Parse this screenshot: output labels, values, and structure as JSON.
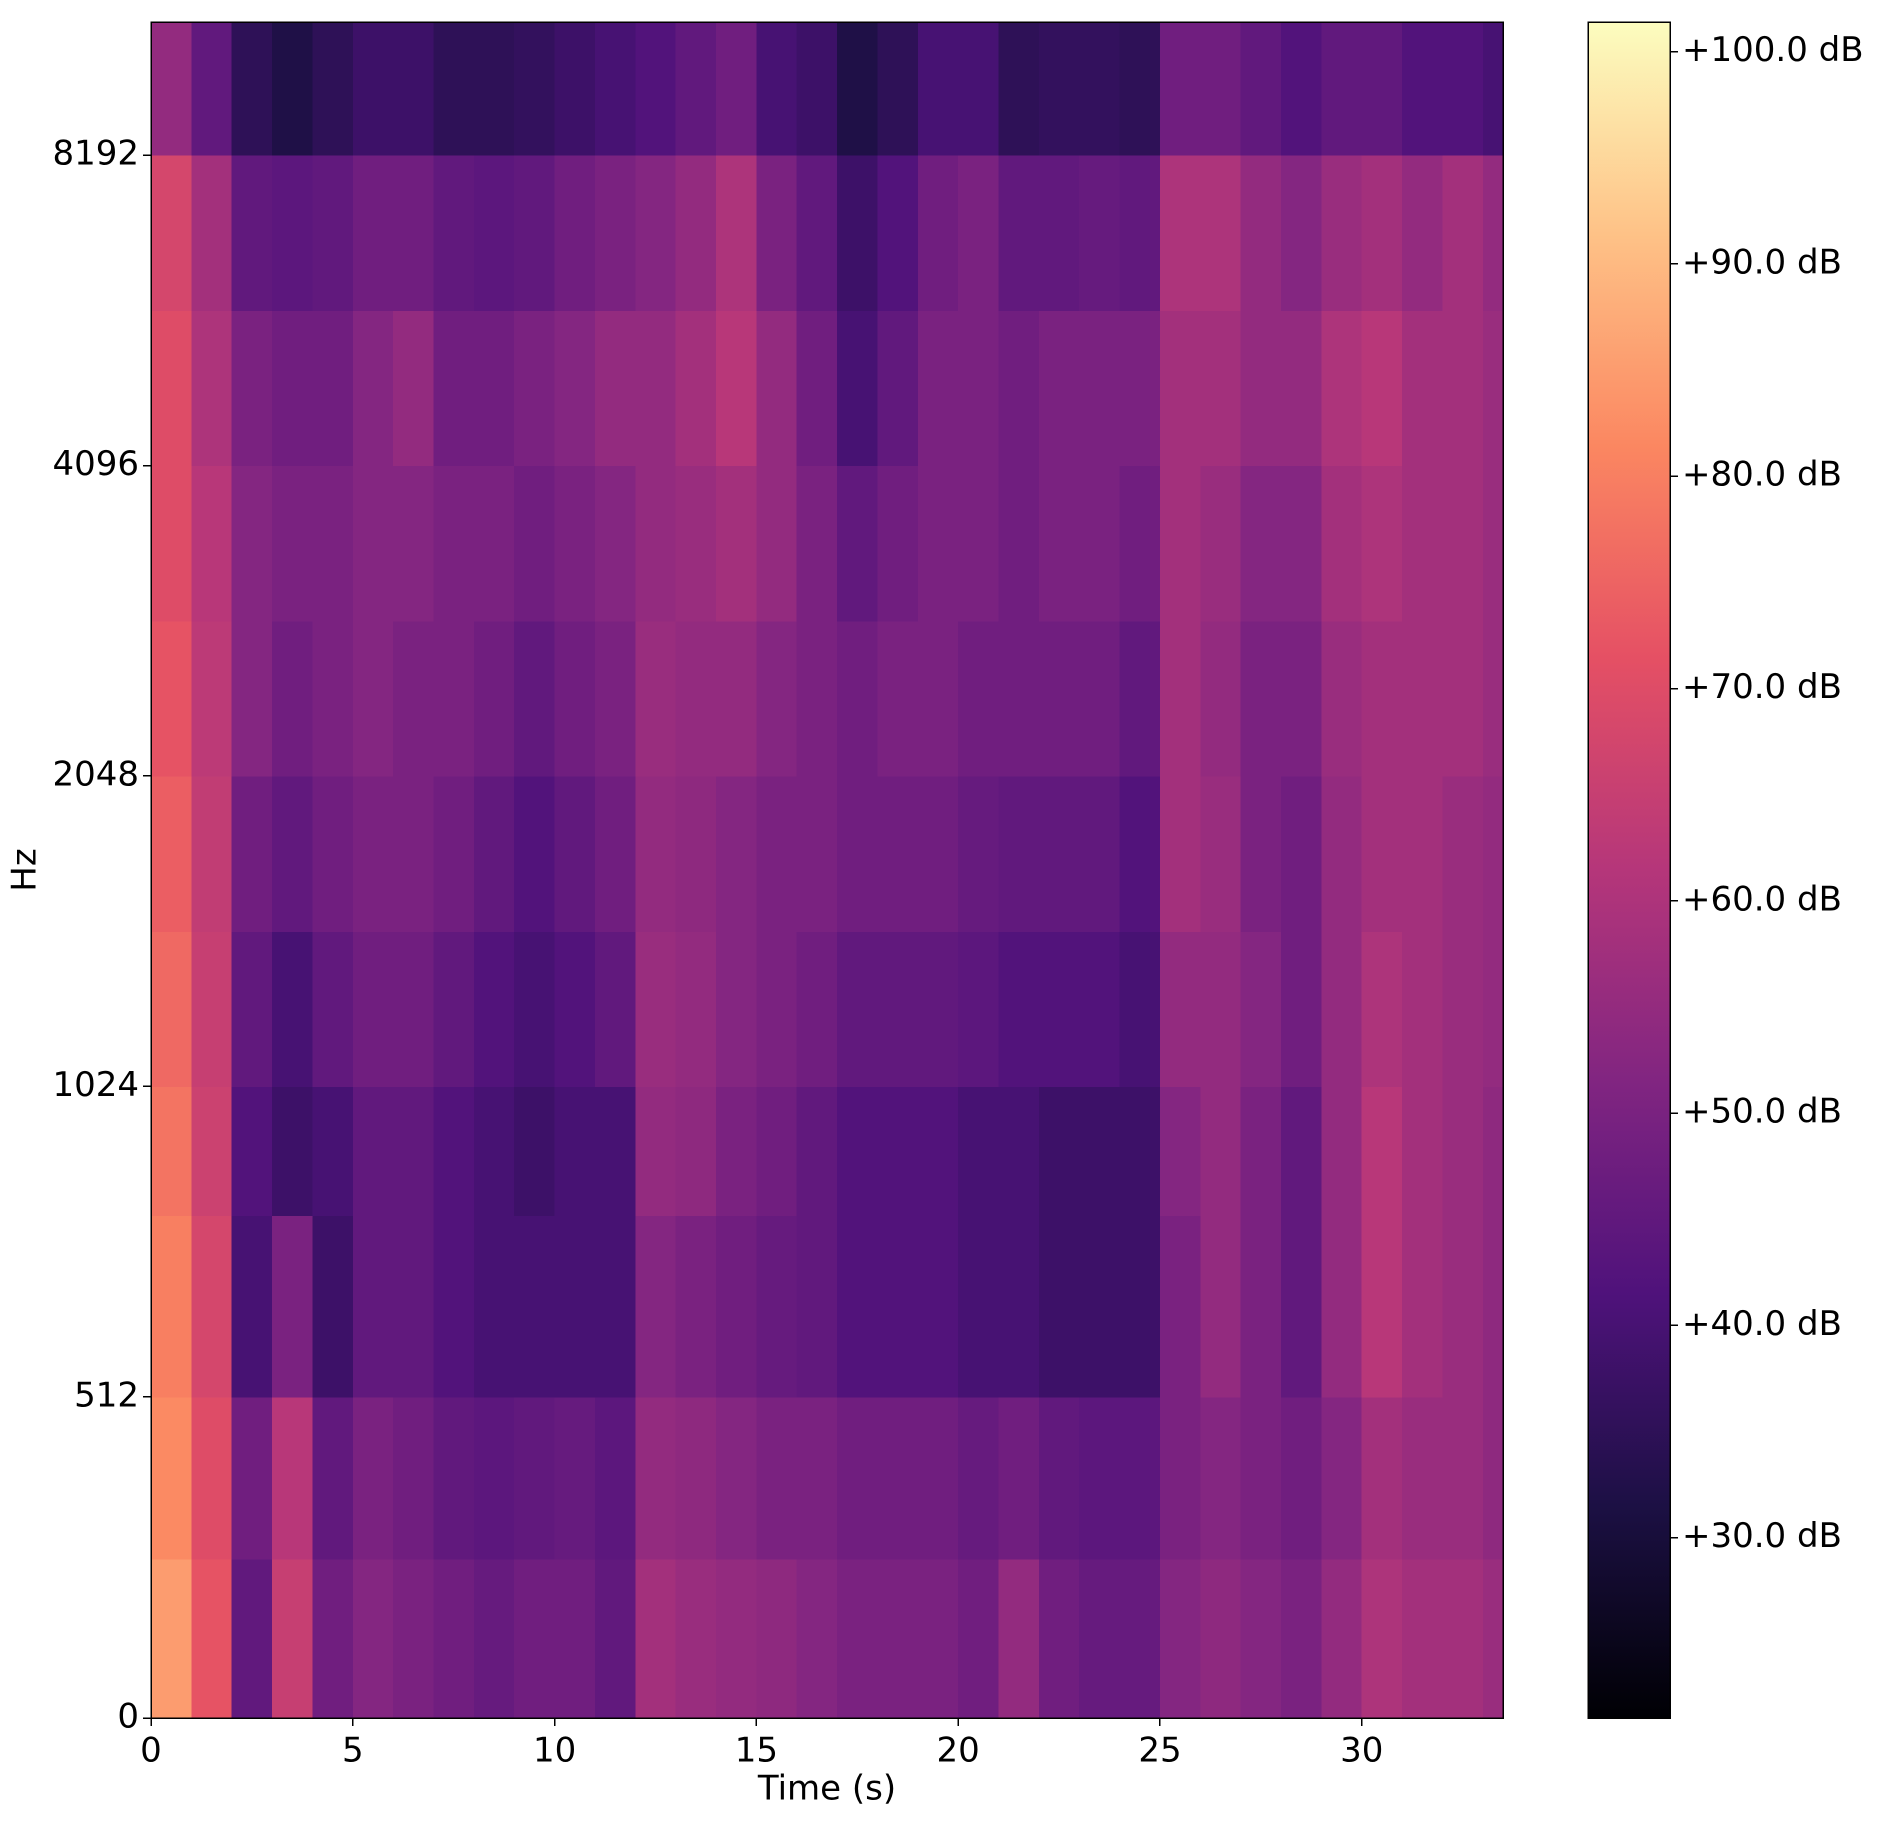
{
  "chart_data": {
    "type": "heatmap",
    "xlabel": "Time (s)",
    "ylabel": "Hz",
    "colormap": "magma",
    "yscale": "symlog",
    "xlim": [
      0,
      33.5
    ],
    "ylim": [
      0,
      11025
    ],
    "xticks": [
      0,
      5,
      10,
      15,
      20,
      25,
      30
    ],
    "yticks": [
      0,
      512,
      1024,
      2048,
      4096,
      8192
    ],
    "clim": [
      21.5,
      101.4
    ],
    "cticks": [
      {
        "value": 30,
        "label": "+30.0 dB"
      },
      {
        "value": 40,
        "label": "+40.0 dB"
      },
      {
        "value": 50,
        "label": "+50.0 dB"
      },
      {
        "value": 60,
        "label": "+60.0 dB"
      },
      {
        "value": 70,
        "label": "+70.0 dB"
      },
      {
        "value": 80,
        "label": "+80.0 dB"
      },
      {
        "value": 90,
        "label": "+90.0 dB"
      },
      {
        "value": 100,
        "label": "+100.0 dB"
      }
    ],
    "xbins": [
      0,
      1,
      2,
      3,
      4,
      5,
      6,
      7,
      8,
      9,
      10,
      11,
      12,
      13,
      14,
      15,
      16,
      17,
      18,
      19,
      20,
      21,
      22,
      23,
      24,
      25,
      26,
      27,
      28,
      29,
      30,
      31,
      32,
      33,
      33.5
    ],
    "ybins": [
      0,
      256,
      512,
      768,
      1024,
      1448,
      2048,
      2896,
      4096,
      5793,
      8192,
      11025
    ],
    "values": [
      [
        85,
        82,
        80,
        78,
        76,
        74,
        72,
        70,
        70,
        68,
        55
      ],
      [
        72,
        70,
        68,
        66,
        65,
        64,
        63,
        62,
        60,
        58,
        45
      ],
      [
        45,
        48,
        40,
        42,
        45,
        48,
        52,
        52,
        50,
        45,
        35
      ],
      [
        65,
        62,
        50,
        38,
        40,
        45,
        48,
        50,
        48,
        44,
        32
      ],
      [
        48,
        45,
        38,
        40,
        45,
        48,
        50,
        50,
        48,
        45,
        35
      ],
      [
        52,
        50,
        45,
        45,
        48,
        50,
        52,
        52,
        52,
        48,
        38
      ],
      [
        50,
        48,
        45,
        45,
        48,
        50,
        50,
        52,
        55,
        48,
        38
      ],
      [
        48,
        45,
        42,
        42,
        45,
        48,
        50,
        50,
        48,
        45,
        35
      ],
      [
        46,
        44,
        40,
        40,
        42,
        45,
        48,
        50,
        48,
        44,
        35
      ],
      [
        48,
        45,
        40,
        38,
        40,
        42,
        45,
        48,
        50,
        45,
        36
      ],
      [
        48,
        46,
        40,
        40,
        42,
        45,
        48,
        50,
        52,
        48,
        38
      ],
      [
        45,
        44,
        40,
        40,
        45,
        48,
        50,
        52,
        55,
        50,
        40
      ],
      [
        58,
        55,
        52,
        55,
        56,
        55,
        56,
        55,
        55,
        52,
        42
      ],
      [
        56,
        54,
        50,
        54,
        55,
        54,
        55,
        56,
        58,
        55,
        45
      ],
      [
        55,
        52,
        48,
        50,
        52,
        52,
        55,
        58,
        62,
        60,
        48
      ],
      [
        54,
        50,
        46,
        48,
        50,
        50,
        52,
        55,
        55,
        50,
        40
      ],
      [
        52,
        50,
        45,
        45,
        48,
        50,
        50,
        50,
        48,
        45,
        38
      ],
      [
        50,
        48,
        42,
        42,
        45,
        48,
        48,
        45,
        40,
        38,
        32
      ],
      [
        50,
        48,
        42,
        42,
        45,
        48,
        50,
        48,
        45,
        42,
        35
      ],
      [
        50,
        48,
        42,
        42,
        45,
        48,
        50,
        50,
        50,
        48,
        40
      ],
      [
        48,
        46,
        40,
        40,
        44,
        46,
        48,
        50,
        50,
        50,
        40
      ],
      [
        55,
        48,
        40,
        40,
        42,
        45,
        48,
        48,
        48,
        45,
        35
      ],
      [
        48,
        45,
        38,
        38,
        42,
        45,
        48,
        50,
        50,
        45,
        36
      ],
      [
        46,
        44,
        38,
        38,
        42,
        45,
        48,
        50,
        50,
        46,
        36
      ],
      [
        46,
        44,
        38,
        38,
        40,
        42,
        45,
        48,
        50,
        45,
        35
      ],
      [
        52,
        50,
        50,
        52,
        55,
        58,
        58,
        58,
        58,
        60,
        48
      ],
      [
        54,
        52,
        55,
        55,
        55,
        56,
        55,
        56,
        58,
        60,
        48
      ],
      [
        52,
        50,
        50,
        50,
        52,
        50,
        50,
        52,
        55,
        55,
        45
      ],
      [
        50,
        48,
        45,
        45,
        48,
        48,
        50,
        52,
        55,
        52,
        42
      ],
      [
        55,
        52,
        55,
        55,
        55,
        55,
        56,
        58,
        60,
        56,
        45
      ],
      [
        60,
        58,
        62,
        62,
        60,
        58,
        58,
        60,
        62,
        58,
        45
      ],
      [
        58,
        56,
        58,
        58,
        58,
        58,
        58,
        58,
        58,
        55,
        42
      ],
      [
        58,
        56,
        56,
        56,
        56,
        56,
        58,
        58,
        58,
        58,
        42
      ],
      [
        56,
        54,
        54,
        54,
        55,
        55,
        56,
        56,
        56,
        55,
        40
      ]
    ]
  }
}
